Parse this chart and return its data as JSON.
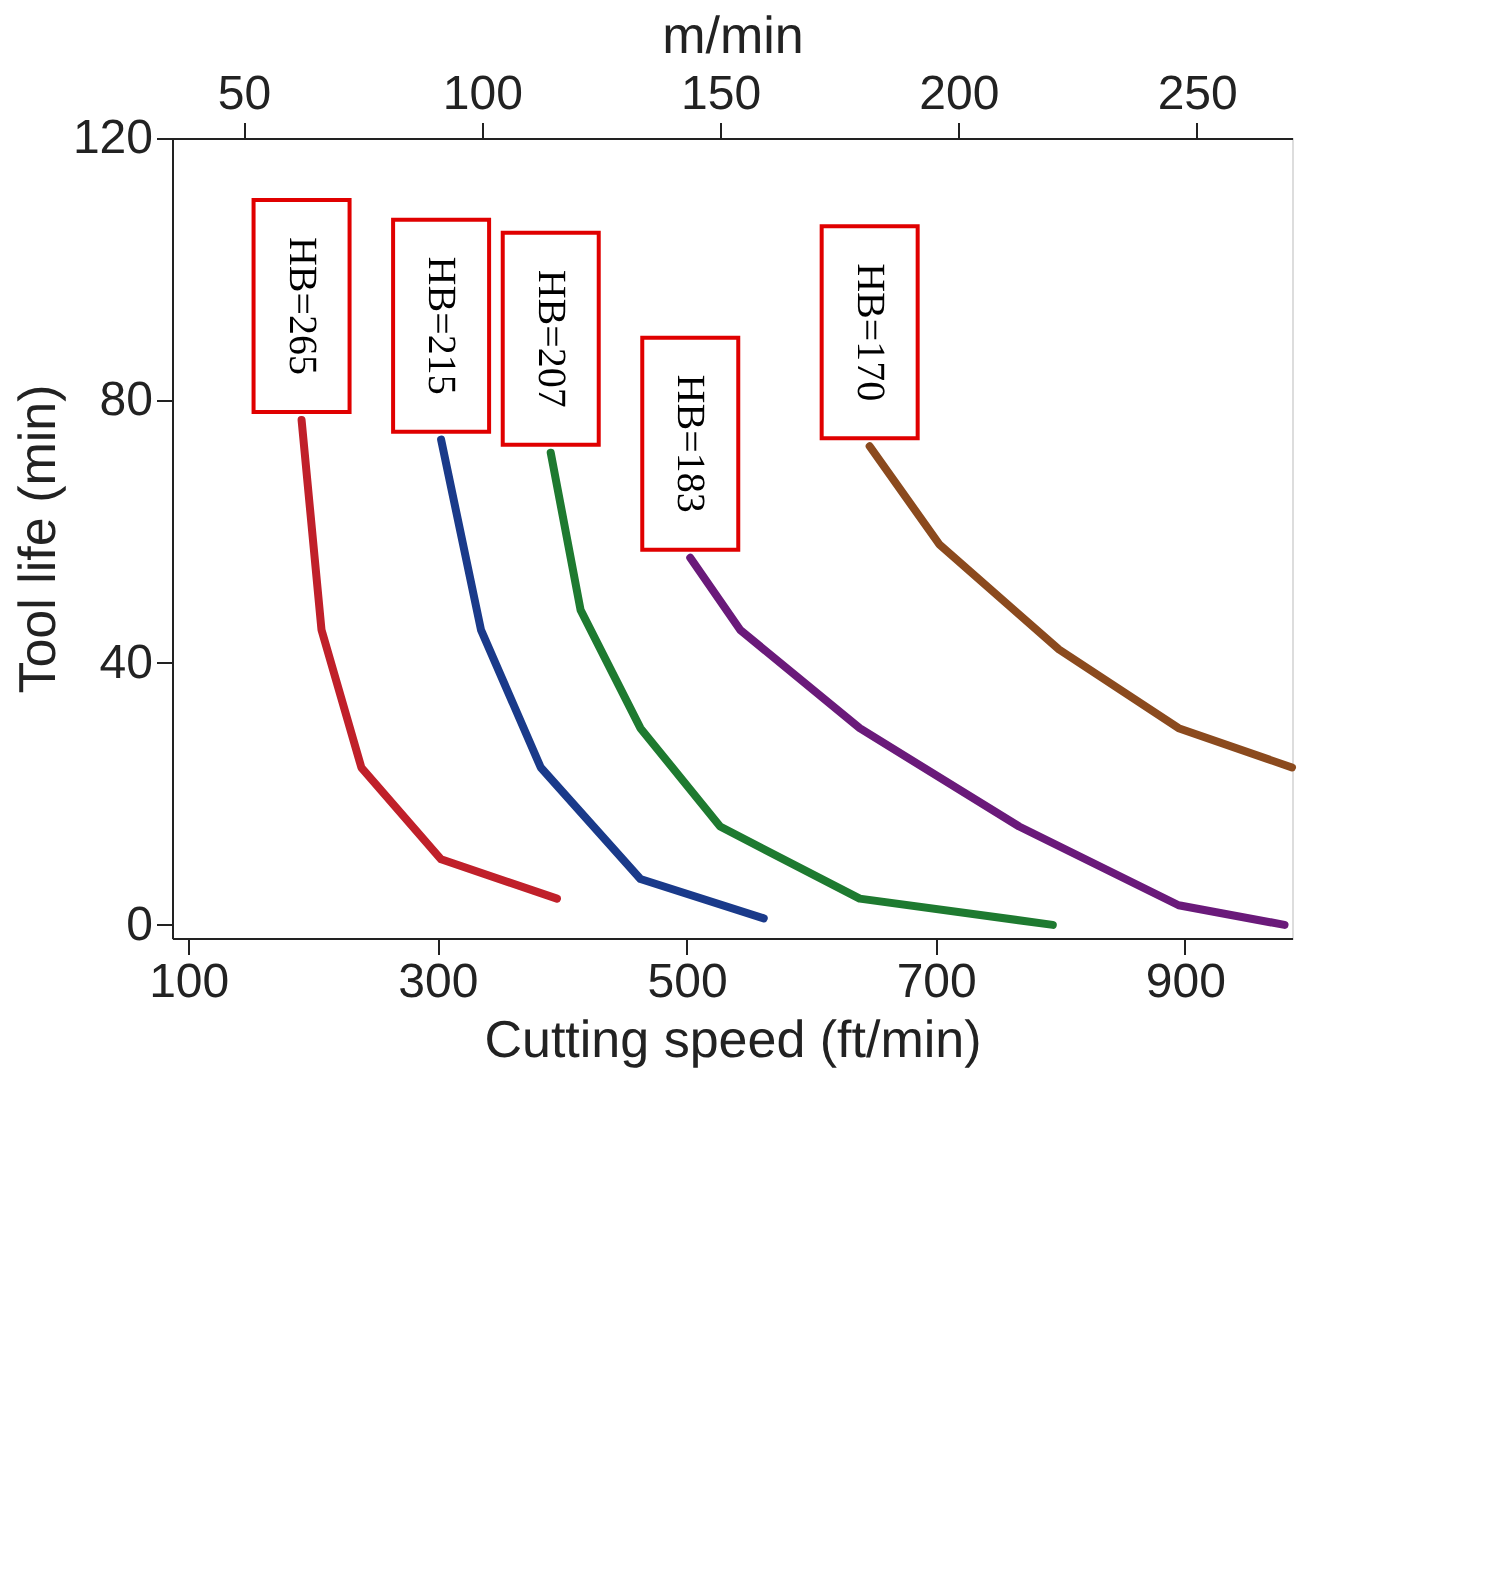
{
  "chart_data": {
    "type": "line",
    "xlabel": "Cutting speed (ft/min)",
    "ylabel": "Tool life (min)",
    "x2label": "m/min",
    "xlim": [
      87,
      986
    ],
    "xticks": [
      100,
      300,
      500,
      700,
      900
    ],
    "ylim": [
      -2,
      120
    ],
    "yticks": [
      0,
      40,
      80,
      120
    ],
    "x2lim": [
      35,
      270
    ],
    "x2ticks": [
      50,
      100,
      150,
      200,
      250
    ],
    "grid": false,
    "legend": false,
    "marker": "none",
    "line_style": "solid",
    "series": [
      {
        "name": "HB=265",
        "color": "#c0202a",
        "x": [
          191,
          207,
          239,
          303,
          396
        ],
        "values": [
          77,
          45,
          24,
          10,
          4
        ]
      },
      {
        "name": "HB=215",
        "color": "#1a3a8a",
        "x": [
          303,
          335,
          383,
          463,
          562
        ],
        "values": [
          74,
          45,
          24,
          7,
          1
        ]
      },
      {
        "name": "HB=207",
        "color": "#1e7a30",
        "x": [
          391,
          415,
          463,
          527,
          639,
          794
        ],
        "values": [
          72,
          48,
          30,
          15,
          4,
          0
        ]
      },
      {
        "name": "HB=183",
        "color": "#6a1a7a",
        "x": [
          503,
          543,
          639,
          767,
          895,
          980
        ],
        "values": [
          56,
          45,
          30,
          15,
          3,
          0
        ]
      },
      {
        "name": "HB=170",
        "color": "#8b4a1e",
        "x": [
          647,
          703,
          799,
          895,
          986
        ],
        "values": [
          73,
          58,
          42,
          30,
          24
        ]
      }
    ]
  }
}
